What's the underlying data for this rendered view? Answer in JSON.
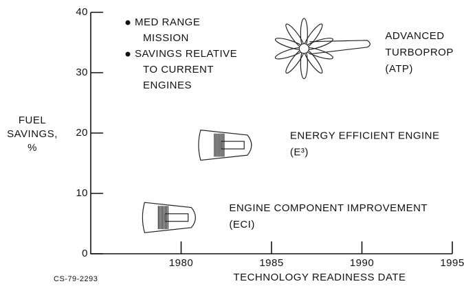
{
  "chart_data": {
    "type": "scatter",
    "x_label": "TECHNOLOGY READINESS DATE",
    "y_label": [
      "FUEL",
      "SAVINGS,",
      "%"
    ],
    "notes": [
      [
        "MED RANGE",
        "MISSION"
      ],
      [
        "SAVINGS RELATIVE",
        "TO CURRENT",
        "ENGINES"
      ]
    ],
    "footnote": "CS-79-2293",
    "x": [
      1979.5,
      1982.6,
      1986.8
    ],
    "values": [
      6,
      18,
      34
    ],
    "labels": [
      [
        "ENGINE COMPONENT IMPROVEMENT",
        "(ECI)"
      ],
      [
        "ENERGY EFFICIENT ENGINE",
        "(E³)"
      ],
      [
        "ADVANCED",
        "TURBOPROP",
        "(ATP)"
      ]
    ],
    "xlim": [
      1975,
      1995
    ],
    "xticks": [
      1980,
      1985,
      1990,
      1995
    ],
    "ylim": [
      0,
      40
    ],
    "yticks": [
      0,
      10,
      20,
      30,
      40
    ]
  }
}
